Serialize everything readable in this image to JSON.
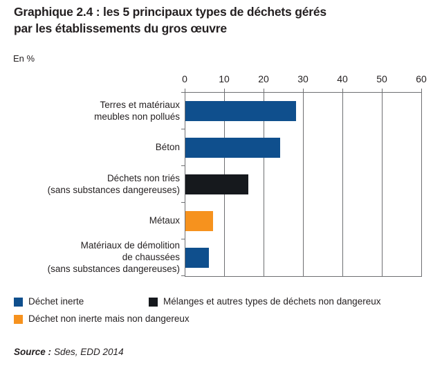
{
  "header": {
    "title_lines": [
      "Graphique 2.4 : les 5 principaux types de déchets gérés",
      "par les établissements du gros œuvre"
    ],
    "unit_label": "En %"
  },
  "chart_data": {
    "type": "bar",
    "orientation": "horizontal",
    "title": "Graphique 2.4 : les 5 principaux types de déchets gérés par les établissements du gros œuvre",
    "unit_label": "En %",
    "xlim": [
      0,
      60
    ],
    "xticks": [
      0,
      10,
      20,
      30,
      40,
      50,
      60
    ],
    "grid": true,
    "legend_position": "bottom",
    "categories": [
      {
        "lines": [
          "Terres et matériaux",
          "meubles non pollués"
        ],
        "value": 28,
        "series": "Déchet inerte"
      },
      {
        "lines": [
          "Béton"
        ],
        "value": 24,
        "series": "Déchet inerte"
      },
      {
        "lines": [
          "Déchets non triés",
          "(sans substances dangereuses)"
        ],
        "value": 16,
        "series": "Mélanges et autres types de déchets non dangereux"
      },
      {
        "lines": [
          "Métaux"
        ],
        "value": 7,
        "series": "Déchet non inerte mais non dangereux"
      },
      {
        "lines": [
          "Matériaux de démolition",
          "de chaussées",
          "(sans substances dangereuses)"
        ],
        "value": 6,
        "series": "Déchet inerte"
      }
    ],
    "series_colors": {
      "Déchet inerte": "#0f4f8d",
      "Mélanges et autres types de déchets non dangereux": "#16191d",
      "Déchet non inerte mais non dangereux": "#f6921e"
    },
    "axis_color": "#6d6e71",
    "text_color": "#231f20"
  },
  "legend": {
    "items": [
      "Déchet inerte",
      "Mélanges et autres types de déchets non dangereux",
      "Déchet non inerte mais non dangereux"
    ]
  },
  "source": {
    "prefix": "Source :",
    "text": "Sdes, EDD 2014"
  }
}
